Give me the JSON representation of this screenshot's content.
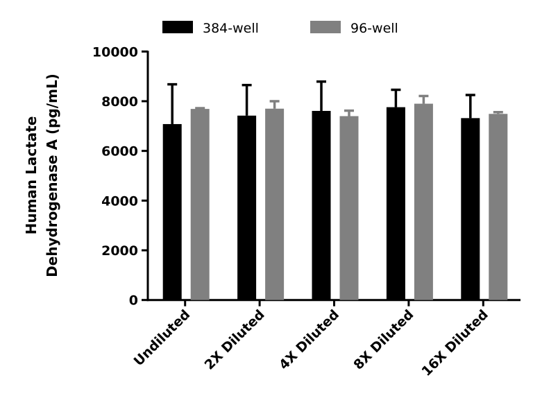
{
  "chart_data": {
    "type": "bar",
    "ylabel_line1": "Human Lactate",
    "ylabel_line2": "Dehydrogenase A (pg/mL)",
    "xlabel": "",
    "ylim": [
      0,
      10000
    ],
    "yticks": [
      "0",
      "2000",
      "4000",
      "6000",
      "8000",
      "10000"
    ],
    "categories": [
      "Undiluted",
      "2X Diluted",
      "4X Diluted",
      "8X Diluted",
      "16X Diluted"
    ],
    "legend_position": "top",
    "series": [
      {
        "name": "384-well",
        "color": "#000000",
        "values": [
          7080,
          7420,
          7610,
          7760,
          7320
        ],
        "error_upper": [
          8680,
          8650,
          8790,
          8460,
          8250
        ]
      },
      {
        "name": "96-well",
        "color": "#808080",
        "values": [
          7690,
          7700,
          7400,
          7900,
          7490
        ],
        "error_upper": [
          7720,
          8000,
          7620,
          8210,
          7560
        ]
      }
    ]
  }
}
